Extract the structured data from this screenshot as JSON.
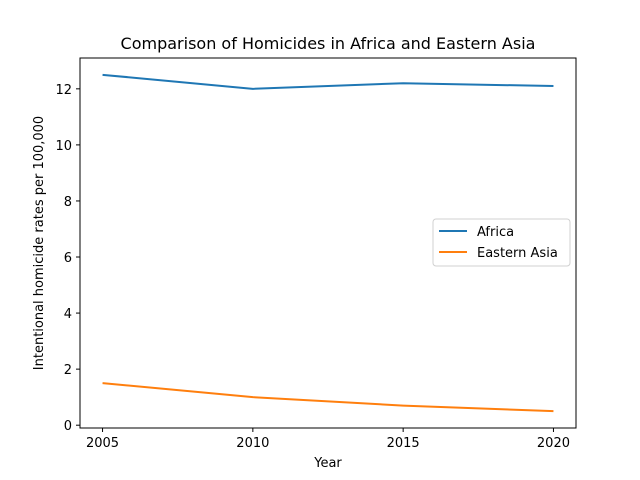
{
  "chart_data": {
    "type": "line",
    "title": "Comparison of Homicides in Africa and Eastern Asia",
    "xlabel": "Year",
    "ylabel": "Intentional homicide rates per 100,000",
    "x": [
      2005,
      2010,
      2015,
      2020
    ],
    "xticks": [
      2005,
      2010,
      2015,
      2020
    ],
    "yticks": [
      0,
      2,
      4,
      6,
      8,
      10,
      12
    ],
    "xlim": [
      2004.25,
      2020.75
    ],
    "ylim": [
      -0.1,
      13.1
    ],
    "grid": false,
    "legend_position": "center-right",
    "series": [
      {
        "name": "Africa",
        "color": "#1f77b4",
        "values": [
          12.5,
          12.0,
          12.2,
          12.1
        ]
      },
      {
        "name": "Eastern Asia",
        "color": "#ff7f0e",
        "values": [
          1.5,
          1.0,
          0.7,
          0.5
        ]
      }
    ]
  }
}
